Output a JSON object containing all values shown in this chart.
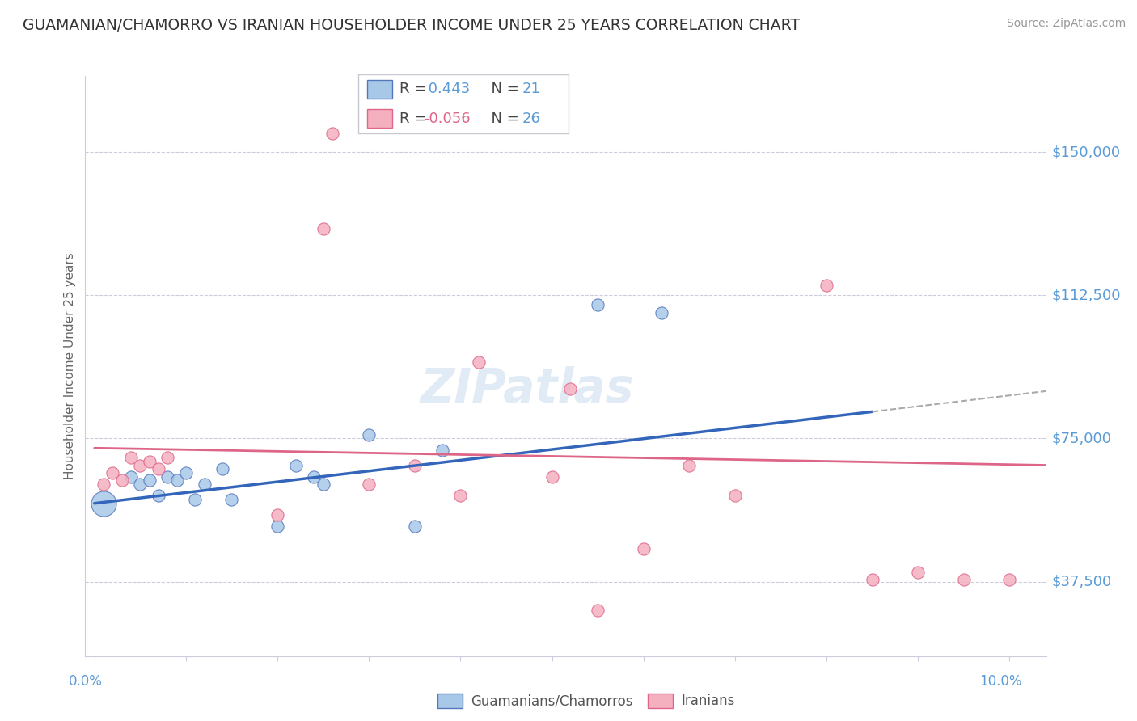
{
  "title": "GUAMANIAN/CHAMORRO VS IRANIAN HOUSEHOLDER INCOME UNDER 25 YEARS CORRELATION CHART",
  "source": "Source: ZipAtlas.com",
  "ylabel": "Householder Income Under 25 years",
  "ytick_labels": [
    "$150,000",
    "$112,500",
    "$75,000",
    "$37,500"
  ],
  "ytick_values": [
    150000,
    112500,
    75000,
    37500
  ],
  "ylim": [
    18000,
    170000
  ],
  "xlim": [
    -0.001,
    0.104
  ],
  "legend1_r": "0.443",
  "legend1_n": "21",
  "legend2_r": "-0.056",
  "legend2_n": "26",
  "blue_fill": "#a8c8e8",
  "blue_edge": "#5577bb",
  "pink_fill": "#f5b0c0",
  "pink_edge": "#dd6688",
  "blue_line": "#3366bb",
  "pink_line": "#dd6688",
  "gray_dash": "#aaaaaa",
  "title_color": "#333333",
  "axis_color": "#5b9bd5",
  "grid_color": "#ccccdd",
  "watermark": "ZIPatlas",
  "guamanians_x": [
    0.001,
    0.004,
    0.005,
    0.006,
    0.007,
    0.008,
    0.009,
    0.01,
    0.011,
    0.012,
    0.014,
    0.015,
    0.02,
    0.022,
    0.024,
    0.025,
    0.03,
    0.035,
    0.038,
    0.055,
    0.062
  ],
  "guamanians_y": [
    58000,
    65000,
    63000,
    64000,
    60000,
    65000,
    64000,
    66000,
    59000,
    63000,
    67000,
    59000,
    52000,
    68000,
    65000,
    63000,
    76000,
    52000,
    72000,
    110000,
    108000
  ],
  "guamanians_size_small": 120,
  "guamanians_size_large": 500,
  "iranians_x": [
    0.001,
    0.002,
    0.003,
    0.004,
    0.005,
    0.006,
    0.007,
    0.008,
    0.02,
    0.025,
    0.026,
    0.03,
    0.035,
    0.04,
    0.042,
    0.05,
    0.052,
    0.055,
    0.06,
    0.065,
    0.07,
    0.08,
    0.085,
    0.09,
    0.095,
    0.1
  ],
  "iranians_y": [
    63000,
    66000,
    64000,
    70000,
    68000,
    69000,
    67000,
    70000,
    55000,
    130000,
    155000,
    63000,
    68000,
    60000,
    95000,
    65000,
    88000,
    30000,
    46000,
    68000,
    60000,
    115000,
    38000,
    40000,
    38000,
    38000
  ],
  "iranians_size": 120,
  "blue_line_x0": 0.0,
  "blue_line_y0": 58000,
  "blue_line_x1": 0.085,
  "blue_line_y1": 82000,
  "dash_line_x0": 0.085,
  "dash_line_y0": 82000,
  "dash_line_x1": 0.104,
  "dash_line_y1": 87400,
  "pink_line_x0": 0.0,
  "pink_line_y0": 72500,
  "pink_line_x1": 0.104,
  "pink_line_y1": 68000
}
